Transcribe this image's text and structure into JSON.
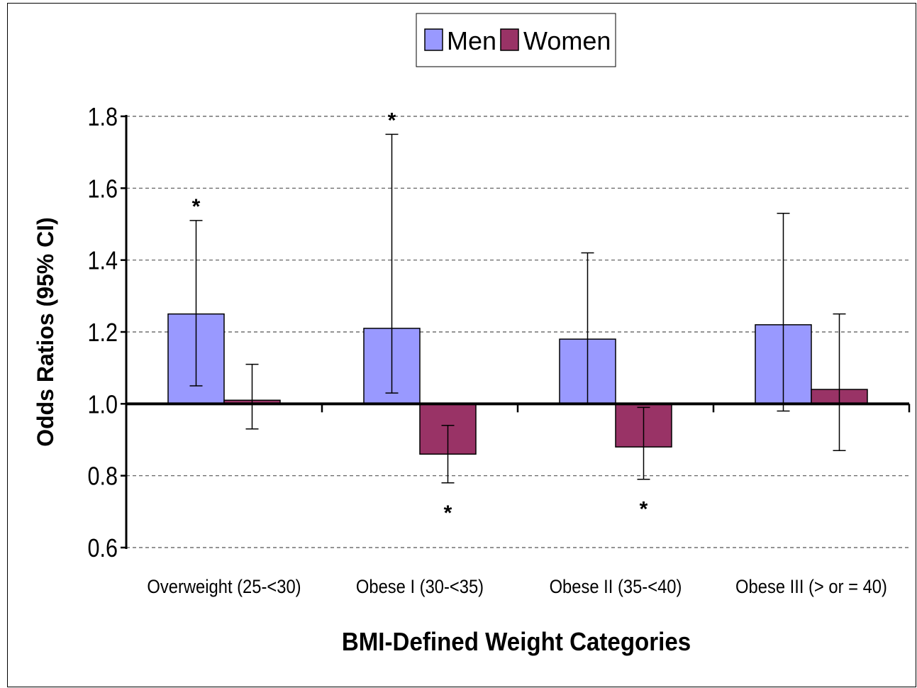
{
  "chart_data": {
    "type": "bar",
    "xlabel": "BMI-Defined Weight Categories",
    "ylabel": "Odds Ratios (95% CI)",
    "ylim": [
      0.6,
      1.8
    ],
    "baseline": 1.0,
    "yticks": [
      0.6,
      0.8,
      1.0,
      1.2,
      1.4,
      1.6,
      1.8
    ],
    "ytick_labels": [
      "0.6",
      "0.8",
      "1.0",
      "1.2",
      "1.4",
      "1.6",
      "1.8"
    ],
    "grid": true,
    "legend_position": "top-center",
    "categories": [
      "Overweight (25-<30)",
      "Obese I (30-<35)",
      "Obese II (35-<40)",
      "Obese III (> or = 40)"
    ],
    "series": [
      {
        "name": "Men",
        "color": "#9999ff",
        "values": [
          1.25,
          1.21,
          1.18,
          1.22
        ],
        "ci_low": [
          1.05,
          1.03,
          1.0,
          0.98
        ],
        "ci_high": [
          1.51,
          1.75,
          1.42,
          1.53
        ],
        "significant": [
          true,
          true,
          false,
          false
        ],
        "sig_marker": "*"
      },
      {
        "name": "Women",
        "color": "#993366",
        "values": [
          1.01,
          0.86,
          0.88,
          1.04
        ],
        "ci_low": [
          0.93,
          0.78,
          0.79,
          0.87
        ],
        "ci_high": [
          1.11,
          0.94,
          0.99,
          1.25
        ],
        "significant": [
          false,
          true,
          true,
          false
        ],
        "sig_marker": "*"
      }
    ]
  }
}
